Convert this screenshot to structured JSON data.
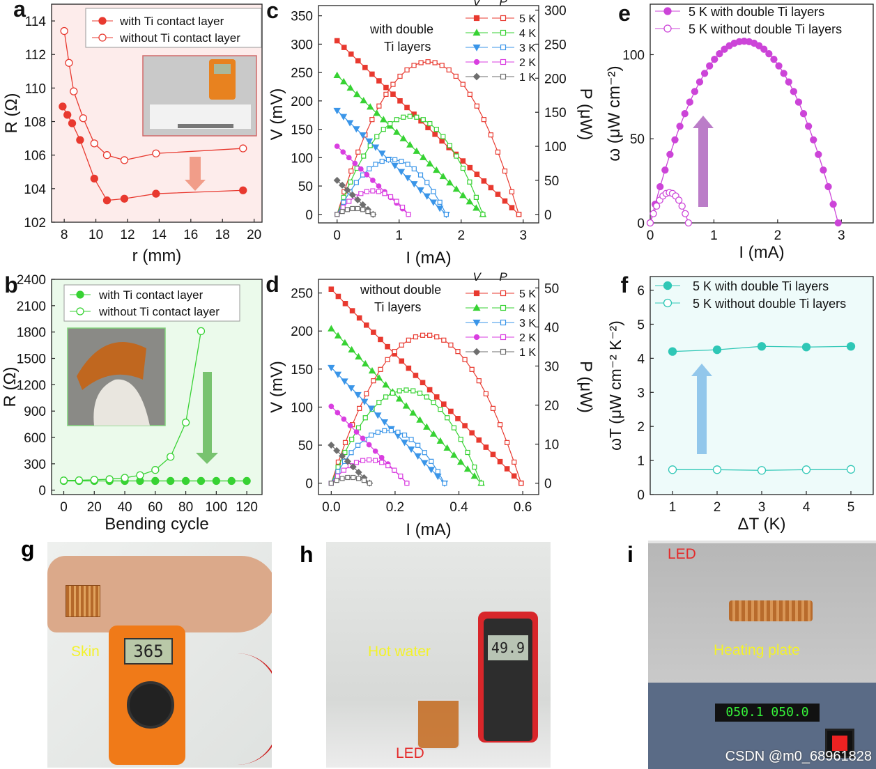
{
  "colors": {
    "red": "#e8392f",
    "green": "#37d233",
    "blue": "#3a95e8",
    "magenta": "#d93ee0",
    "gray": "#6e6e6e",
    "purple": "#cc44d8",
    "teal": "#2fc7b6"
  },
  "panel_letters": {
    "a": "a",
    "b": "b",
    "c": "c",
    "d": "d",
    "e": "e",
    "f": "f",
    "g": "g",
    "h": "h",
    "i": "i"
  },
  "chart_data": [
    {
      "id": "a",
      "type": "scatter",
      "xlabel": "r (mm)",
      "ylabel": "R (Ω)",
      "xlim": [
        7.2,
        20.5
      ],
      "ylim": [
        102,
        115
      ],
      "xticks": [
        8,
        10,
        12,
        14,
        16,
        18,
        20
      ],
      "yticks": [
        102,
        104,
        106,
        108,
        110,
        112,
        114
      ],
      "legend": [
        "with Ti contact layer",
        "without Ti contact layer"
      ],
      "series": [
        {
          "name": "with Ti contact layer",
          "filled": true,
          "x": [
            7.9,
            8.2,
            8.5,
            9.0,
            9.9,
            10.7,
            11.8,
            13.8,
            19.3
          ],
          "y": [
            108.9,
            108.4,
            107.9,
            106.9,
            104.6,
            103.3,
            103.4,
            103.7,
            103.9
          ]
        },
        {
          "name": "without Ti contact layer",
          "filled": false,
          "x": [
            8.0,
            8.3,
            8.6,
            9.2,
            9.9,
            10.7,
            11.8,
            13.8,
            19.3
          ],
          "y": [
            113.4,
            111.5,
            109.8,
            108.2,
            106.7,
            106.0,
            105.7,
            106.1,
            106.4
          ]
        }
      ]
    },
    {
      "id": "b",
      "type": "scatter",
      "xlabel": "Bending cycle",
      "ylabel": "R (Ω)",
      "xlim": [
        -8,
        130
      ],
      "ylim": [
        -50,
        2400
      ],
      "xticks": [
        0,
        20,
        40,
        60,
        80,
        100,
        120
      ],
      "yticks": [
        0,
        300,
        600,
        900,
        1200,
        1500,
        1800,
        2100,
        2400
      ],
      "legend": [
        "with Ti contact layer",
        "without Ti contact layer"
      ],
      "series": [
        {
          "name": "with Ti contact layer",
          "filled": true,
          "x": [
            0,
            10,
            20,
            30,
            40,
            50,
            60,
            70,
            80,
            90,
            100,
            110,
            120
          ],
          "y": [
            105,
            105,
            105,
            105,
            105,
            105,
            105,
            105,
            105,
            105,
            105,
            105,
            105
          ]
        },
        {
          "name": "without Ti contact layer",
          "filled": false,
          "x": [
            0,
            10,
            20,
            30,
            40,
            50,
            60,
            70,
            80,
            90
          ],
          "y": [
            110,
            112,
            118,
            125,
            140,
            170,
            230,
            380,
            770,
            1810
          ]
        }
      ]
    },
    {
      "id": "c",
      "type": "line",
      "title": "with double Ti layers",
      "xlabel": "I (mA)",
      "ylabel": "V (mV)",
      "ylabel2": "P (μW)",
      "xlim": [
        -0.3,
        3.25
      ],
      "ylim": [
        -15,
        368
      ],
      "ylim2": [
        -12.5,
        306.7
      ],
      "xticks": [
        0,
        1,
        2,
        3
      ],
      "yticks": [
        0,
        50,
        100,
        150,
        200,
        250,
        300,
        350
      ],
      "yticks2": [
        0,
        50,
        100,
        150,
        200,
        250,
        300
      ],
      "legend_headers": [
        "V",
        "P"
      ],
      "series": [
        {
          "name": "5 K",
          "voc": 306,
          "isc": 2.93,
          "n": 26
        },
        {
          "name": "4 K",
          "voc": 245,
          "isc": 2.35,
          "n": 22
        },
        {
          "name": "3 K",
          "voc": 183,
          "isc": 1.76,
          "n": 17
        },
        {
          "name": "2 K",
          "voc": 120,
          "isc": 1.15,
          "n": 12
        },
        {
          "name": "1 K",
          "voc": 60,
          "isc": 0.58,
          "n": 7
        }
      ]
    },
    {
      "id": "d",
      "type": "line",
      "title": "without double Ti layers",
      "xlabel": "I (mA)",
      "ylabel": "V (mV)",
      "ylabel2": "P (μW)",
      "xlim": [
        -0.04,
        0.65
      ],
      "ylim": [
        -15,
        268
      ],
      "ylim2": [
        -2.9,
        52.2
      ],
      "xticks": [
        0.0,
        0.2,
        0.4,
        0.6
      ],
      "yticks": [
        0,
        50,
        100,
        150,
        200,
        250
      ],
      "yticks2": [
        0,
        10,
        20,
        30,
        40,
        50
      ],
      "legend_headers": [
        "V",
        "P"
      ],
      "series": [
        {
          "name": "5 K",
          "voc": 255,
          "isc": 0.595,
          "n": 27
        },
        {
          "name": "4 K",
          "voc": 203,
          "isc": 0.47,
          "n": 22
        },
        {
          "name": "3 K",
          "voc": 152,
          "isc": 0.355,
          "n": 17
        },
        {
          "name": "2 K",
          "voc": 101,
          "isc": 0.237,
          "n": 12
        },
        {
          "name": "1 K",
          "voc": 50,
          "isc": 0.12,
          "n": 7
        }
      ]
    },
    {
      "id": "e",
      "type": "scatter",
      "xlabel": "I (mA)",
      "ylabel": "ω (μW cm⁻²)",
      "xlim": [
        0,
        3.5
      ],
      "ylim": [
        0,
        130
      ],
      "xticks": [
        0,
        1,
        2,
        3
      ],
      "yticks": [
        0,
        50,
        100
      ],
      "legend": [
        "5 K  with double Ti layers",
        "5 K  without double Ti layers"
      ],
      "series": [
        {
          "name": "5 K  with double Ti layers",
          "filled": true,
          "peak": 108,
          "isc": 2.95,
          "n": 38
        },
        {
          "name": "5 K  without double Ti layers",
          "filled": false,
          "peak": 18,
          "isc": 0.6,
          "n": 12
        }
      ]
    },
    {
      "id": "f",
      "type": "scatter",
      "xlabel": "ΔT (K)",
      "ylabel": "ωT (μW cm⁻² K⁻²)",
      "xlim": [
        0.5,
        5.5
      ],
      "ylim": [
        0,
        6.4
      ],
      "xticks": [
        1,
        2,
        3,
        4,
        5
      ],
      "yticks": [
        0,
        1,
        2,
        3,
        4,
        5,
        6
      ],
      "legend": [
        "5 K  with double Ti layers",
        "5 K  without double Ti layers"
      ],
      "series": [
        {
          "name": "5 K  with double Ti layers",
          "filled": true,
          "x": [
            1,
            2,
            3,
            4,
            5
          ],
          "y": [
            4.2,
            4.25,
            4.35,
            4.33,
            4.35
          ]
        },
        {
          "name": "5 K  without double Ti layers",
          "filled": false,
          "x": [
            1,
            2,
            3,
            4,
            5
          ],
          "y": [
            0.73,
            0.73,
            0.71,
            0.73,
            0.74
          ]
        }
      ]
    }
  ],
  "photos": {
    "a_inset": {
      "desc": "multimeter on foam"
    },
    "b_inset": {
      "desc": "flexible device bent by fingers"
    },
    "g": {
      "label": "Skin",
      "display": "365"
    },
    "h": {
      "label1": "Hot water",
      "label2": "LED",
      "display": "49.9"
    },
    "i": {
      "label1": "LED",
      "label2": "Heating plate",
      "display": "050.1 050.0",
      "watermark": "CSDN @m0_68961828"
    }
  }
}
